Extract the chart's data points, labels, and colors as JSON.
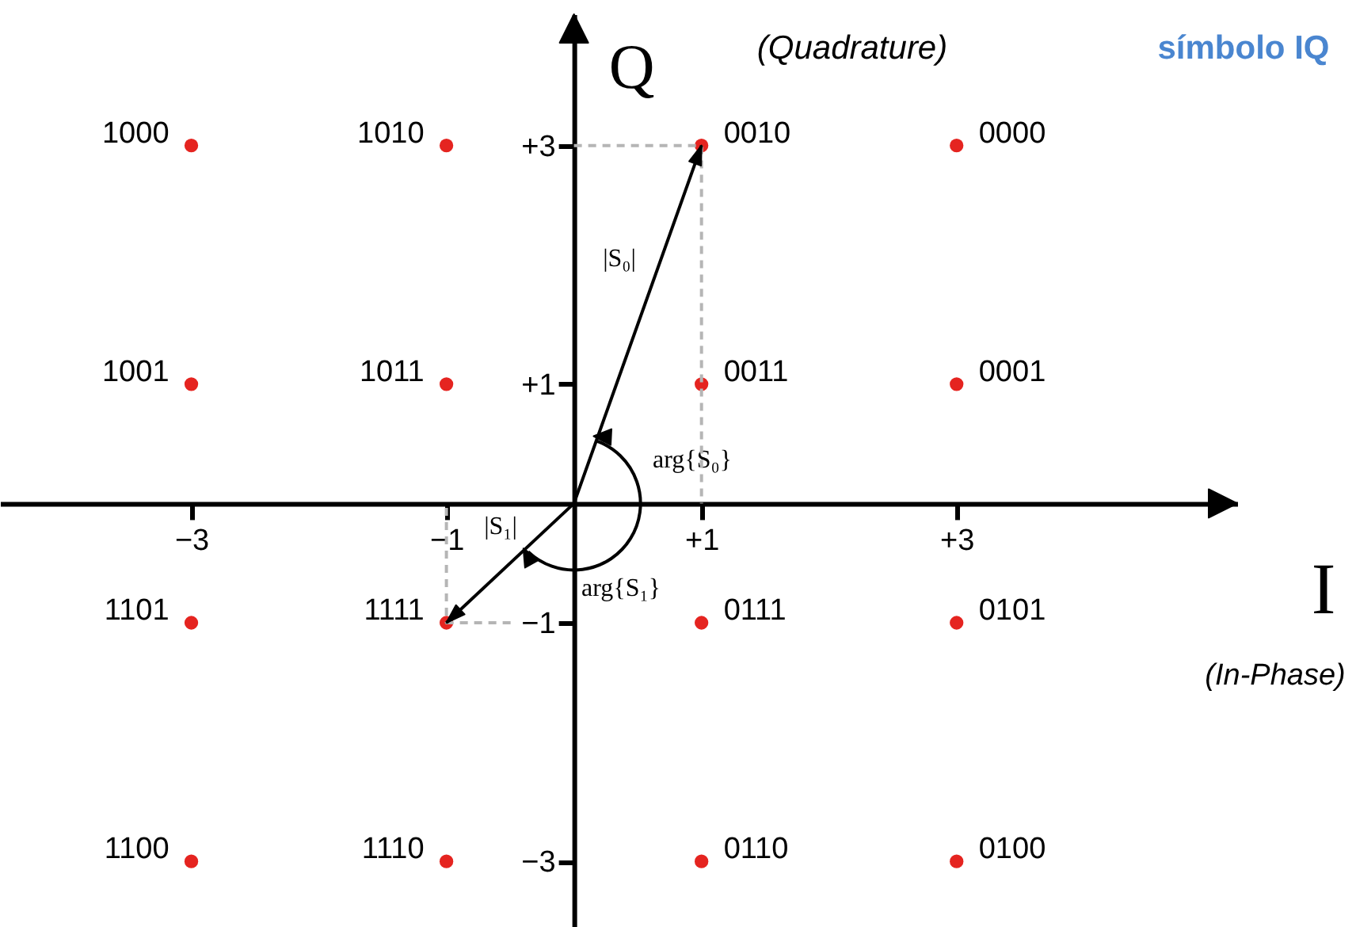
{
  "chart_data": {
    "type": "scatter",
    "xlabel": "I",
    "ylabel": "Q",
    "xlim": [
      -4.5,
      5.2
    ],
    "ylim": [
      -3.55,
      4.1
    ],
    "xticks": [
      {
        "value": -3,
        "label": "−3"
      },
      {
        "value": -1,
        "label": "−1"
      },
      {
        "value": 1,
        "label": "+1"
      },
      {
        "value": 3,
        "label": "+3"
      }
    ],
    "yticks": [
      {
        "value": -3,
        "label": "−3"
      },
      {
        "value": -1,
        "label": "−1"
      },
      {
        "value": 1,
        "label": "+1"
      },
      {
        "value": 3,
        "label": "+3"
      }
    ],
    "grid": false,
    "series": [
      {
        "color": "#e52420",
        "marker": "circle",
        "x": [
          -3,
          -1,
          1,
          3,
          -3,
          -1,
          1,
          3,
          -3,
          -1,
          1,
          3,
          -3,
          -1,
          1,
          3
        ],
        "values": [
          3,
          3,
          3,
          3,
          1,
          1,
          1,
          1,
          -1,
          -1,
          -1,
          -1,
          -3,
          -3,
          -3,
          -3
        ]
      }
    ],
    "annotations": [
      "(Quadrature)",
      "símbolo IQ",
      "(In-Phase)",
      "|S₀|",
      "|S₁|",
      "arg{S₀}",
      "arg{S₁}",
      {
        "text": "1000",
        "x": -3,
        "y": 3
      },
      {
        "text": "1010",
        "x": -1,
        "y": 3
      },
      {
        "text": "0010",
        "x": 1,
        "y": 3
      },
      {
        "text": "0000",
        "x": 3,
        "y": 3
      },
      {
        "text": "1001",
        "x": -3,
        "y": 1
      },
      {
        "text": "1011",
        "x": -1,
        "y": 1
      },
      {
        "text": "0011",
        "x": 1,
        "y": 1
      },
      {
        "text": "0001",
        "x": 3,
        "y": 1
      },
      {
        "text": "1101",
        "x": -3,
        "y": -1
      },
      {
        "text": "1111",
        "x": -1,
        "y": -1
      },
      {
        "text": "0111",
        "x": 1,
        "y": -1
      },
      {
        "text": "0101",
        "x": 3,
        "y": -1
      },
      {
        "text": "1100",
        "x": -3,
        "y": -3
      },
      {
        "text": "1110",
        "x": -1,
        "y": -3
      },
      {
        "text": "0110",
        "x": 1,
        "y": -3
      },
      {
        "text": "0100",
        "x": 3,
        "y": -3
      }
    ]
  }
}
